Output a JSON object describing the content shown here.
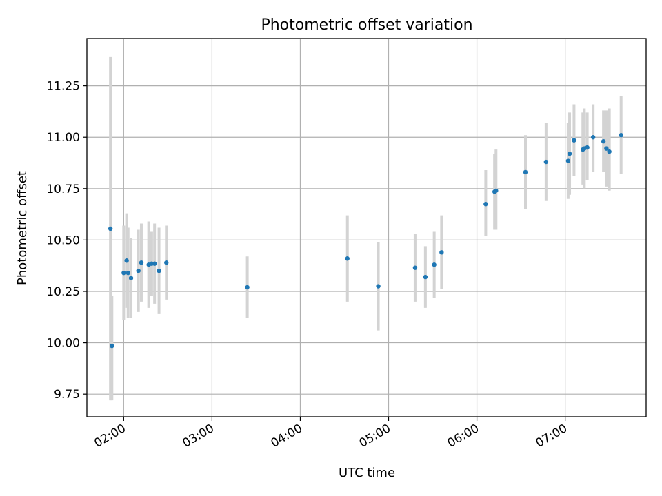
{
  "chart_data": {
    "type": "scatter",
    "title": "Photometric offset variation",
    "xlabel": "UTC time",
    "ylabel": "Photometric offset",
    "xlim": [
      "01:35",
      "07:55"
    ],
    "ylim": [
      9.64,
      11.48
    ],
    "xticks": [
      "02:00",
      "03:00",
      "04:00",
      "05:00",
      "06:00",
      "07:00"
    ],
    "yticks": [
      "9.75",
      "10.00",
      "10.25",
      "10.50",
      "10.75",
      "11.00",
      "11.25"
    ],
    "grid": true,
    "errorbar_color": "#d3d3d3",
    "marker_color": "#1f77b4",
    "points": [
      {
        "x": "01:51",
        "y": 10.555,
        "ylow": 9.72,
        "yhigh": 11.39
      },
      {
        "x": "01:52",
        "y": 9.985,
        "ylow": 9.72,
        "yhigh": 10.23
      },
      {
        "x": "02:00",
        "y": 10.34,
        "ylow": 10.11,
        "yhigh": 10.57
      },
      {
        "x": "02:02",
        "y": 10.4,
        "ylow": 10.17,
        "yhigh": 10.63
      },
      {
        "x": "02:03",
        "y": 10.34,
        "ylow": 10.12,
        "yhigh": 10.56
      },
      {
        "x": "02:05",
        "y": 10.315,
        "ylow": 10.12,
        "yhigh": 10.51
      },
      {
        "x": "02:10",
        "y": 10.35,
        "ylow": 10.15,
        "yhigh": 10.55
      },
      {
        "x": "02:12",
        "y": 10.39,
        "ylow": 10.2,
        "yhigh": 10.58
      },
      {
        "x": "02:17",
        "y": 10.38,
        "ylow": 10.17,
        "yhigh": 10.59
      },
      {
        "x": "02:19",
        "y": 10.385,
        "ylow": 10.23,
        "yhigh": 10.54
      },
      {
        "x": "02:21",
        "y": 10.385,
        "ylow": 10.19,
        "yhigh": 10.58
      },
      {
        "x": "02:24",
        "y": 10.35,
        "ylow": 10.14,
        "yhigh": 10.56
      },
      {
        "x": "02:29",
        "y": 10.39,
        "ylow": 10.21,
        "yhigh": 10.57
      },
      {
        "x": "03:24",
        "y": 10.27,
        "ylow": 10.12,
        "yhigh": 10.42
      },
      {
        "x": "04:32",
        "y": 10.41,
        "ylow": 10.2,
        "yhigh": 10.62
      },
      {
        "x": "04:53",
        "y": 10.275,
        "ylow": 10.06,
        "yhigh": 10.49
      },
      {
        "x": "05:18",
        "y": 10.365,
        "ylow": 10.2,
        "yhigh": 10.53
      },
      {
        "x": "05:25",
        "y": 10.32,
        "ylow": 10.17,
        "yhigh": 10.47
      },
      {
        "x": "05:31",
        "y": 10.38,
        "ylow": 10.22,
        "yhigh": 10.54
      },
      {
        "x": "05:36",
        "y": 10.44,
        "ylow": 10.26,
        "yhigh": 10.62
      },
      {
        "x": "06:06",
        "y": 10.675,
        "ylow": 10.52,
        "yhigh": 10.84
      },
      {
        "x": "06:12",
        "y": 10.735,
        "ylow": 10.55,
        "yhigh": 10.92
      },
      {
        "x": "06:13",
        "y": 10.74,
        "ylow": 10.55,
        "yhigh": 10.94
      },
      {
        "x": "06:33",
        "y": 10.83,
        "ylow": 10.65,
        "yhigh": 11.01
      },
      {
        "x": "06:47",
        "y": 10.88,
        "ylow": 10.69,
        "yhigh": 11.07
      },
      {
        "x": "07:02",
        "y": 10.885,
        "ylow": 10.7,
        "yhigh": 11.07
      },
      {
        "x": "07:03",
        "y": 10.92,
        "ylow": 10.72,
        "yhigh": 11.12
      },
      {
        "x": "07:06",
        "y": 10.985,
        "ylow": 10.81,
        "yhigh": 11.16
      },
      {
        "x": "07:12",
        "y": 10.94,
        "ylow": 10.77,
        "yhigh": 11.12
      },
      {
        "x": "07:13",
        "y": 10.945,
        "ylow": 10.75,
        "yhigh": 11.14
      },
      {
        "x": "07:15",
        "y": 10.95,
        "ylow": 10.79,
        "yhigh": 11.12
      },
      {
        "x": "07:19",
        "y": 11.0,
        "ylow": 10.83,
        "yhigh": 11.16
      },
      {
        "x": "07:26",
        "y": 10.98,
        "ylow": 10.83,
        "yhigh": 11.13
      },
      {
        "x": "07:28",
        "y": 10.945,
        "ylow": 10.76,
        "yhigh": 11.13
      },
      {
        "x": "07:30",
        "y": 10.93,
        "ylow": 10.74,
        "yhigh": 11.14
      },
      {
        "x": "07:38",
        "y": 11.01,
        "ylow": 10.82,
        "yhigh": 11.2
      }
    ]
  }
}
